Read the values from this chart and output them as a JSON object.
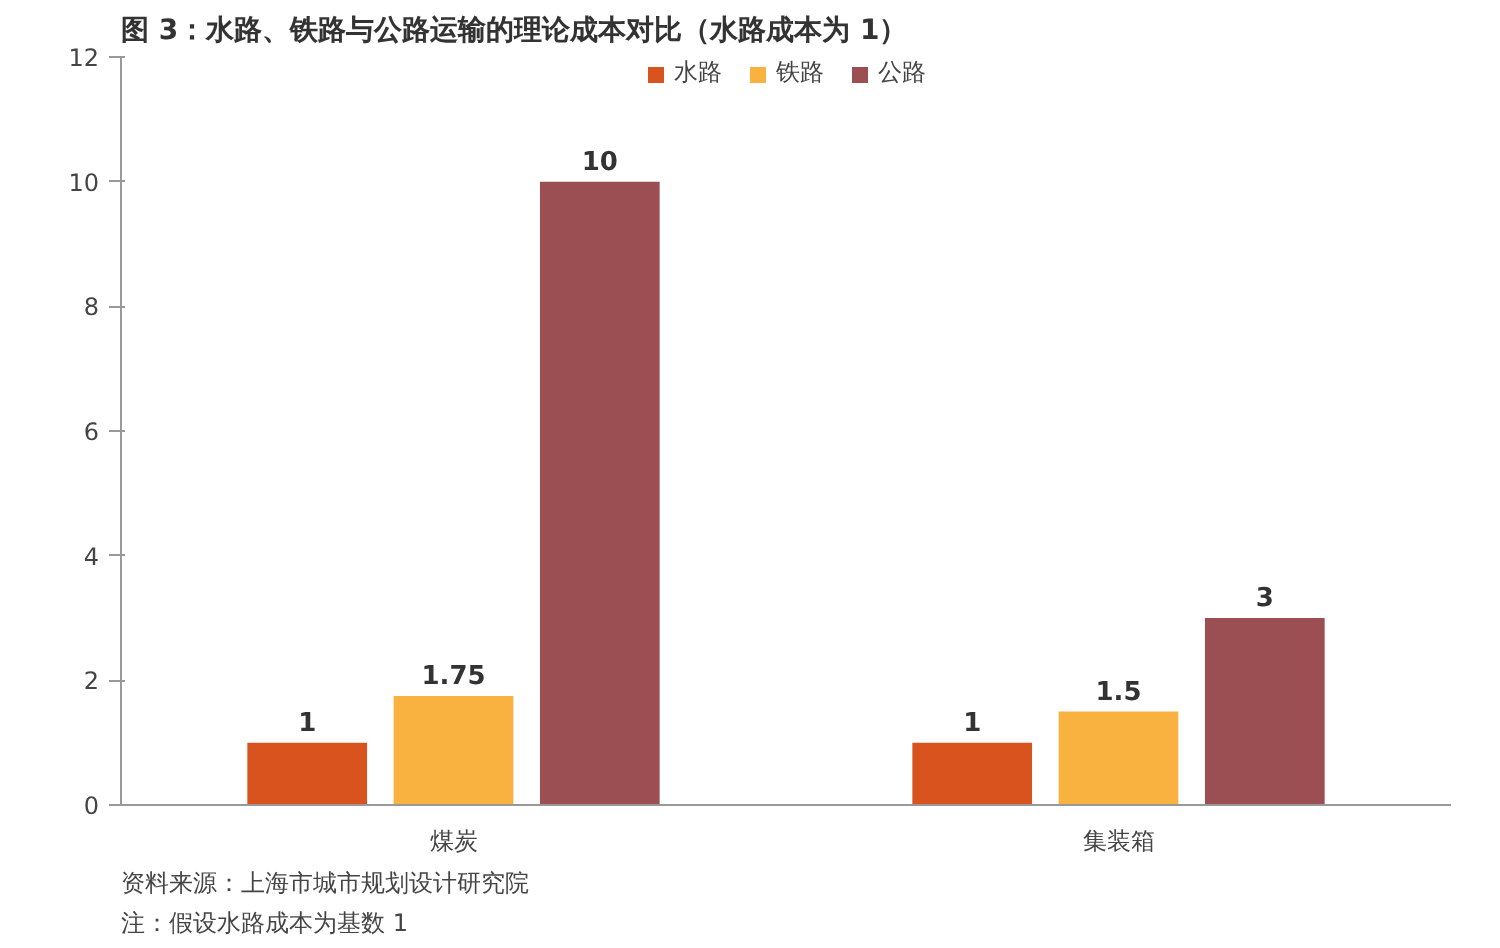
{
  "chart_data": {
    "type": "bar",
    "title": "图 3：水路、铁路与公路运输的理论成本对比（水路成本为 1）",
    "categories": [
      "煤炭",
      "集装箱"
    ],
    "series": [
      {
        "name": "水路",
        "color": "#d9531e",
        "values": [
          1,
          1
        ]
      },
      {
        "name": "铁路",
        "color": "#f9b13f",
        "values": [
          1.75,
          1.5
        ]
      },
      {
        "name": "公路",
        "color": "#9b4f52",
        "values": [
          10,
          3
        ]
      }
    ],
    "ylim": [
      0,
      12
    ],
    "yticks": [
      0,
      2,
      4,
      6,
      8,
      10,
      12
    ],
    "grid": false,
    "legend": "top",
    "data_labels": true,
    "annotations": [
      "资料来源：上海市城市规划设计研究院",
      "注：假设水路成本为基数 1"
    ]
  }
}
